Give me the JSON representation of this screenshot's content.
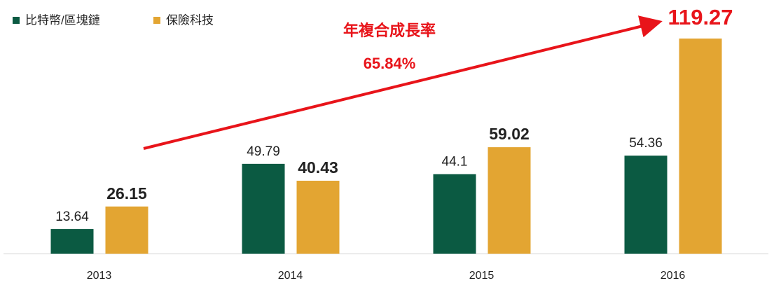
{
  "chart_data": {
    "type": "bar",
    "categories": [
      "2013",
      "2014",
      "2015",
      "2016"
    ],
    "series": [
      {
        "name": "比特幣/區塊鏈",
        "color": "#0b5a42",
        "values": [
          13.64,
          49.79,
          44.1,
          54.36
        ]
      },
      {
        "name": "保險科技",
        "color": "#e3a532",
        "values": [
          26.15,
          40.43,
          59.02,
          119.27
        ]
      }
    ],
    "annotations": [
      "年複合成長率",
      "65.84%"
    ]
  }
}
